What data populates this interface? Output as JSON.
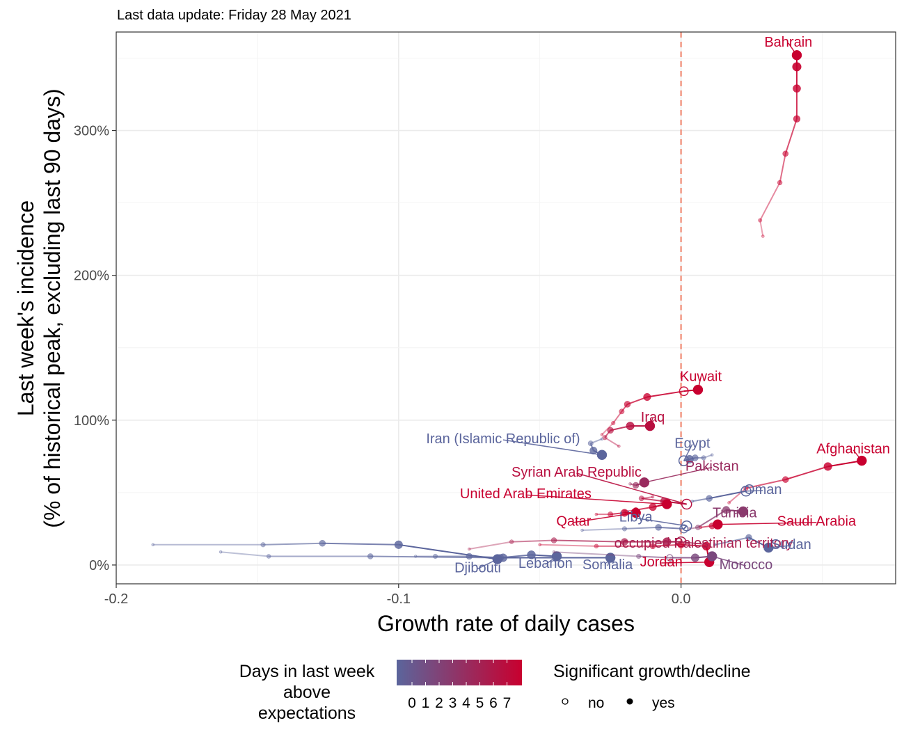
{
  "subtitle": "Last data update: Friday 28 May 2021",
  "chart_data": {
    "type": "scatter",
    "xlabel": "Growth rate of daily cases",
    "ylabel_line1": "Last week's incidence",
    "ylabel_line2": "(% of historical peak, excluding last 90 days)",
    "xlim": [
      -0.2,
      0.076
    ],
    "ylim": [
      -13,
      368
    ],
    "x_ticks": [
      -0.2,
      -0.1,
      0.0
    ],
    "x_tick_labels": [
      "-0.2",
      "-0.1",
      "0.0"
    ],
    "y_ticks": [
      0,
      100,
      200,
      300
    ],
    "y_tick_labels": [
      "0%",
      "100%",
      "200%",
      "300%"
    ],
    "reference_line_x": 0,
    "grid": true,
    "color_scale": {
      "low": "#5b659c",
      "high": "#c8002f"
    },
    "legend": {
      "color_title_lines": [
        "Days in last week",
        "above",
        "expectations"
      ],
      "color_values": [
        "0",
        "1",
        "2",
        "3",
        "4",
        "5",
        "6",
        "7"
      ],
      "shape_title": "Significant growth/decline",
      "shape_no": "no",
      "shape_yes": "yes",
      "position": "bottom"
    },
    "series": [
      {
        "name": "Bahrain",
        "days_above": 7,
        "label_pos": [
          0.038,
          358
        ],
        "points": [
          [
            0.029,
            227
          ],
          [
            0.028,
            238
          ],
          [
            0.035,
            264
          ],
          [
            0.037,
            284
          ],
          [
            0.041,
            308
          ],
          [
            0.041,
            329
          ],
          [
            0.041,
            344
          ],
          [
            0.041,
            352
          ]
        ],
        "significant": [
          true,
          true,
          true,
          true,
          true,
          true,
          true,
          true
        ]
      },
      {
        "name": "Kuwait",
        "days_above": 7,
        "label_pos": [
          0.007,
          127
        ],
        "points": [
          [
            -0.028,
            90
          ],
          [
            -0.024,
            98
          ],
          [
            -0.021,
            106
          ],
          [
            -0.019,
            111
          ],
          [
            -0.012,
            116
          ],
          [
            0.001,
            120
          ],
          [
            0.006,
            121
          ]
        ],
        "significant": [
          true,
          true,
          true,
          true,
          true,
          false,
          true
        ]
      },
      {
        "name": "Iraq",
        "days_above": 6,
        "label_pos": [
          -0.01,
          99
        ],
        "points": [
          [
            -0.022,
            82
          ],
          [
            -0.027,
            88
          ],
          [
            -0.025,
            93
          ],
          [
            -0.018,
            96
          ],
          [
            -0.011,
            96
          ]
        ],
        "significant": [
          true,
          true,
          true,
          true,
          true
        ]
      },
      {
        "name": "Iran (Islamic Republic of)",
        "days_above": 0,
        "label_pos": [
          -0.063,
          84
        ],
        "points": [
          [
            -0.028,
            87
          ],
          [
            -0.032,
            84
          ],
          [
            -0.031,
            79
          ],
          [
            -0.028,
            76
          ]
        ],
        "significant": [
          true,
          true,
          true,
          true
        ]
      },
      {
        "name": "Egypt",
        "days_above": 0,
        "label_pos": [
          0.004,
          81
        ],
        "points": [
          [
            0.011,
            76
          ],
          [
            0.008,
            74
          ],
          [
            0.005,
            74
          ],
          [
            0.003,
            73
          ],
          [
            0.001,
            72
          ]
        ],
        "significant": [
          true,
          true,
          true,
          true,
          false
        ]
      },
      {
        "name": "Afghanistan",
        "days_above": 7,
        "label_pos": [
          0.061,
          77
        ],
        "points": [
          [
            0.017,
            43
          ],
          [
            0.023,
            53
          ],
          [
            0.037,
            59
          ],
          [
            0.052,
            68
          ],
          [
            0.064,
            72
          ]
        ],
        "significant": [
          true,
          true,
          true,
          true,
          true
        ]
      },
      {
        "name": "Pakistan",
        "days_above": 4,
        "label_pos": [
          0.011,
          65
        ],
        "points": [
          [
            -0.018,
            56
          ],
          [
            -0.016,
            55
          ],
          [
            -0.013,
            57
          ]
        ],
        "significant": [
          true,
          true,
          true
        ]
      },
      {
        "name": "Syrian Arab Republic",
        "days_above": 6,
        "label_pos": [
          -0.037,
          61
        ],
        "points": [
          [
            -0.01,
            47
          ],
          [
            -0.014,
            46
          ],
          [
            -0.006,
            44
          ],
          [
            0.002,
            42
          ]
        ],
        "significant": [
          true,
          true,
          true,
          false
        ]
      },
      {
        "name": "United Arab Emirates",
        "days_above": 7,
        "label_pos": [
          -0.055,
          46
        ],
        "points": [
          [
            -0.02,
            37
          ],
          [
            -0.016,
            38
          ],
          [
            -0.01,
            40
          ],
          [
            -0.005,
            42
          ]
        ],
        "significant": [
          true,
          true,
          true,
          true
        ]
      },
      {
        "name": "Oman",
        "days_above": 0,
        "label_pos": [
          0.029,
          49
        ],
        "points": [
          [
            0.004,
            44
          ],
          [
            0.01,
            46
          ],
          [
            0.023,
            51
          ]
        ],
        "significant": [
          true,
          true,
          false
        ]
      },
      {
        "name": "Tunisia",
        "days_above": 3,
        "label_pos": [
          0.019,
          33
        ],
        "points": [
          [
            0.003,
            25
          ],
          [
            0.006,
            26
          ],
          [
            0.016,
            38
          ],
          [
            0.022,
            37
          ]
        ],
        "significant": [
          true,
          true,
          true,
          true
        ]
      },
      {
        "name": "Saudi Arabia",
        "days_above": 7,
        "label_pos": [
          0.048,
          27
        ],
        "points": [
          [
            0.007,
            26
          ],
          [
            0.011,
            27
          ],
          [
            0.013,
            28
          ]
        ],
        "significant": [
          true,
          true,
          true
        ]
      },
      {
        "name": "Libya",
        "days_above": 0,
        "label_pos": [
          -0.016,
          30
        ],
        "points": [
          [
            -0.035,
            24
          ],
          [
            -0.02,
            25
          ],
          [
            -0.008,
            26
          ],
          [
            0.001,
            25
          ],
          [
            0.002,
            27
          ]
        ],
        "significant": [
          true,
          true,
          true,
          false,
          false
        ]
      },
      {
        "name": "Qatar",
        "days_above": 7,
        "label_pos": [
          -0.038,
          27
        ],
        "points": [
          [
            -0.03,
            35
          ],
          [
            -0.025,
            35
          ],
          [
            -0.02,
            36
          ],
          [
            -0.016,
            36
          ]
        ],
        "significant": [
          true,
          true,
          true,
          true
        ]
      },
      {
        "name": "occupied Palestinian territory",
        "days_above": 5,
        "label_pos": [
          0.008,
          12
        ],
        "points": [
          [
            -0.075,
            11
          ],
          [
            -0.06,
            16
          ],
          [
            -0.045,
            17
          ],
          [
            -0.02,
            16
          ],
          [
            -0.005,
            16
          ],
          [
            0.0,
            16
          ]
        ],
        "significant": [
          true,
          true,
          true,
          true,
          true,
          false
        ]
      },
      {
        "name": "Sudan",
        "days_above": 0,
        "label_pos": [
          0.039,
          11
        ],
        "points": [
          [
            0.012,
            14
          ],
          [
            0.024,
            19
          ],
          [
            0.031,
            12
          ]
        ],
        "significant": [
          true,
          true,
          true
        ]
      },
      {
        "name": "Djibouti",
        "days_above": 0,
        "label_pos": [
          -0.072,
          -5
        ],
        "points": [
          [
            -0.187,
            14
          ],
          [
            -0.148,
            14
          ],
          [
            -0.127,
            15
          ],
          [
            -0.1,
            14
          ],
          [
            -0.065,
            4
          ]
        ],
        "significant": [
          true,
          true,
          true,
          true,
          true
        ]
      },
      {
        "name": "Lebanon",
        "days_above": 0,
        "label_pos": [
          -0.048,
          -2
        ],
        "points": [
          [
            -0.163,
            9
          ],
          [
            -0.146,
            6
          ],
          [
            -0.11,
            6
          ],
          [
            -0.064,
            5
          ],
          [
            -0.053,
            7
          ],
          [
            -0.044,
            6
          ]
        ],
        "significant": [
          true,
          true,
          true,
          true,
          true,
          true
        ]
      },
      {
        "name": "Somalia",
        "days_above": 0,
        "label_pos": [
          -0.026,
          -3
        ],
        "points": [
          [
            -0.094,
            6
          ],
          [
            -0.087,
            6
          ],
          [
            -0.075,
            6
          ],
          [
            -0.063,
            5
          ],
          [
            -0.025,
            5
          ]
        ],
        "significant": [
          true,
          true,
          true,
          true,
          true
        ]
      },
      {
        "name": "Jordan",
        "days_above": 7,
        "label_pos": [
          -0.007,
          -1
        ],
        "points": [
          [
            -0.05,
            14
          ],
          [
            -0.03,
            13
          ],
          [
            -0.01,
            13
          ],
          [
            0.0,
            14
          ],
          [
            0.009,
            13
          ],
          [
            0.01,
            2
          ]
        ],
        "significant": [
          true,
          true,
          true,
          true,
          true,
          true
        ]
      },
      {
        "name": "Morocco",
        "days_above": 2,
        "label_pos": [
          0.023,
          -3
        ],
        "points": [
          [
            -0.045,
            9
          ],
          [
            -0.015,
            6
          ],
          [
            -0.004,
            5
          ],
          [
            0.005,
            5
          ],
          [
            0.011,
            6
          ]
        ],
        "significant": [
          true,
          true,
          false,
          true,
          true
        ]
      }
    ]
  }
}
